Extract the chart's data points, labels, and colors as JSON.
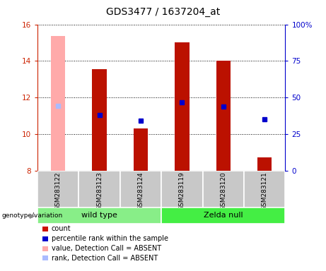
{
  "title": "GDS3477 / 1637204_at",
  "samples": [
    "GSM283122",
    "GSM283123",
    "GSM283124",
    "GSM283119",
    "GSM283120",
    "GSM283121"
  ],
  "bar_base": 8,
  "bar_tops": [
    15.35,
    13.55,
    10.32,
    15.0,
    14.0,
    8.72
  ],
  "bar_colors": [
    "#ffaaaa",
    "#bb1100",
    "#bb1100",
    "#bb1100",
    "#bb1100",
    "#bb1100"
  ],
  "blue_square_y": [
    11.55,
    11.05,
    10.72,
    11.72,
    11.52,
    10.82
  ],
  "blue_square_colors": [
    "#aabbff",
    "#0000cc",
    "#0000cc",
    "#0000cc",
    "#0000cc",
    "#0000cc"
  ],
  "ylim_left": [
    8,
    16
  ],
  "ylim_right": [
    0,
    100
  ],
  "yticks_left": [
    8,
    10,
    12,
    14,
    16
  ],
  "yticks_right": [
    0,
    25,
    50,
    75,
    100
  ],
  "ytick_labels_right": [
    "0",
    "25",
    "50",
    "75",
    "100%"
  ],
  "groups": [
    {
      "label": "wild type",
      "start": 0,
      "end": 3,
      "color": "#88ee88"
    },
    {
      "label": "Zelda null",
      "start": 3,
      "end": 6,
      "color": "#44ee44"
    }
  ],
  "genotype_label": "genotype/variation",
  "legend_items": [
    {
      "color": "#cc1100",
      "label": "count"
    },
    {
      "color": "#0000cc",
      "label": "percentile rank within the sample"
    },
    {
      "color": "#ffaaaa",
      "label": "value, Detection Call = ABSENT"
    },
    {
      "color": "#aabbff",
      "label": "rank, Detection Call = ABSENT"
    }
  ],
  "left_axis_color": "#cc2200",
  "right_axis_color": "#0000cc",
  "plot_bg": "#ffffff",
  "grid_color": "#000000",
  "title_fontsize": 10,
  "tick_fontsize": 7.5,
  "sample_fontsize": 6.5,
  "legend_fontsize": 7,
  "group_fontsize": 8
}
